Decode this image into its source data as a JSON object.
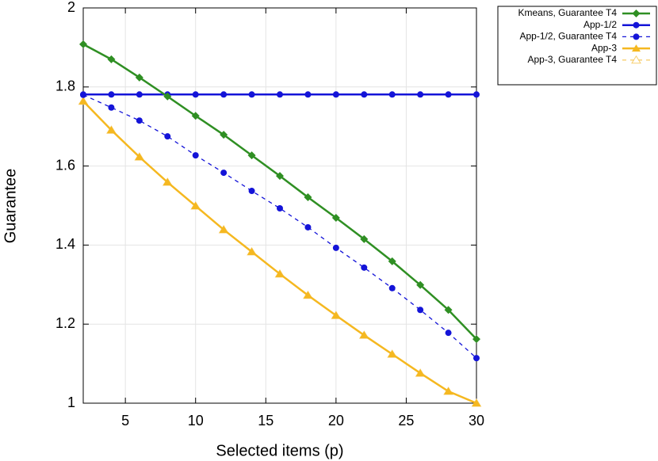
{
  "chart_data": {
    "type": "line",
    "x_label": "Selected items (p)",
    "y_label": "Guarantee",
    "x": [
      2,
      4,
      6,
      8,
      10,
      12,
      14,
      16,
      18,
      20,
      22,
      24,
      26,
      28,
      30
    ],
    "xlim": [
      2,
      30
    ],
    "xticks": [
      5,
      10,
      15,
      20,
      25,
      30
    ],
    "ylim": [
      1,
      2
    ],
    "yticks": [
      1,
      1.2,
      1.4,
      1.6,
      1.8,
      2
    ],
    "grid": true,
    "legend": "outside-top-right",
    "series": [
      {
        "name": "Kmeans, Guarantee T4",
        "color": "#2f8f23",
        "marker": "diamond",
        "dashed": false,
        "values": [
          1.908,
          1.87,
          1.824,
          1.776,
          1.727,
          1.679,
          1.627,
          1.575,
          1.521,
          1.469,
          1.415,
          1.359,
          1.299,
          1.236,
          1.162
        ]
      },
      {
        "name": "App-1/2",
        "color": "#1414d8",
        "marker": "circle",
        "dashed": false,
        "values": [
          1.781,
          1.781,
          1.781,
          1.781,
          1.781,
          1.781,
          1.781,
          1.781,
          1.781,
          1.781,
          1.781,
          1.781,
          1.781,
          1.781,
          1.781
        ]
      },
      {
        "name": "App-1/2, Guarantee T4",
        "color": "#1414d8",
        "marker": "circle",
        "dashed": true,
        "values": [
          1.78,
          1.748,
          1.715,
          1.675,
          1.627,
          1.583,
          1.537,
          1.493,
          1.445,
          1.393,
          1.343,
          1.291,
          1.236,
          1.178,
          1.114
        ]
      },
      {
        "name": "App-3",
        "color": "#f5b820",
        "marker": "triangle",
        "dashed": false,
        "values": [
          1.764,
          1.691,
          1.623,
          1.559,
          1.499,
          1.439,
          1.383,
          1.327,
          1.273,
          1.222,
          1.172,
          1.124,
          1.076,
          1.03,
          1.0
        ]
      },
      {
        "name": "App-3, Guarantee T4",
        "color": "#f7cf70",
        "marker": "triangle-open",
        "dashed": true,
        "values": [
          1.764,
          1.691,
          1.623,
          1.559,
          1.499,
          1.439,
          1.383,
          1.327,
          1.273,
          1.222,
          1.172,
          1.124,
          1.076,
          1.03,
          1.0
        ]
      }
    ]
  }
}
